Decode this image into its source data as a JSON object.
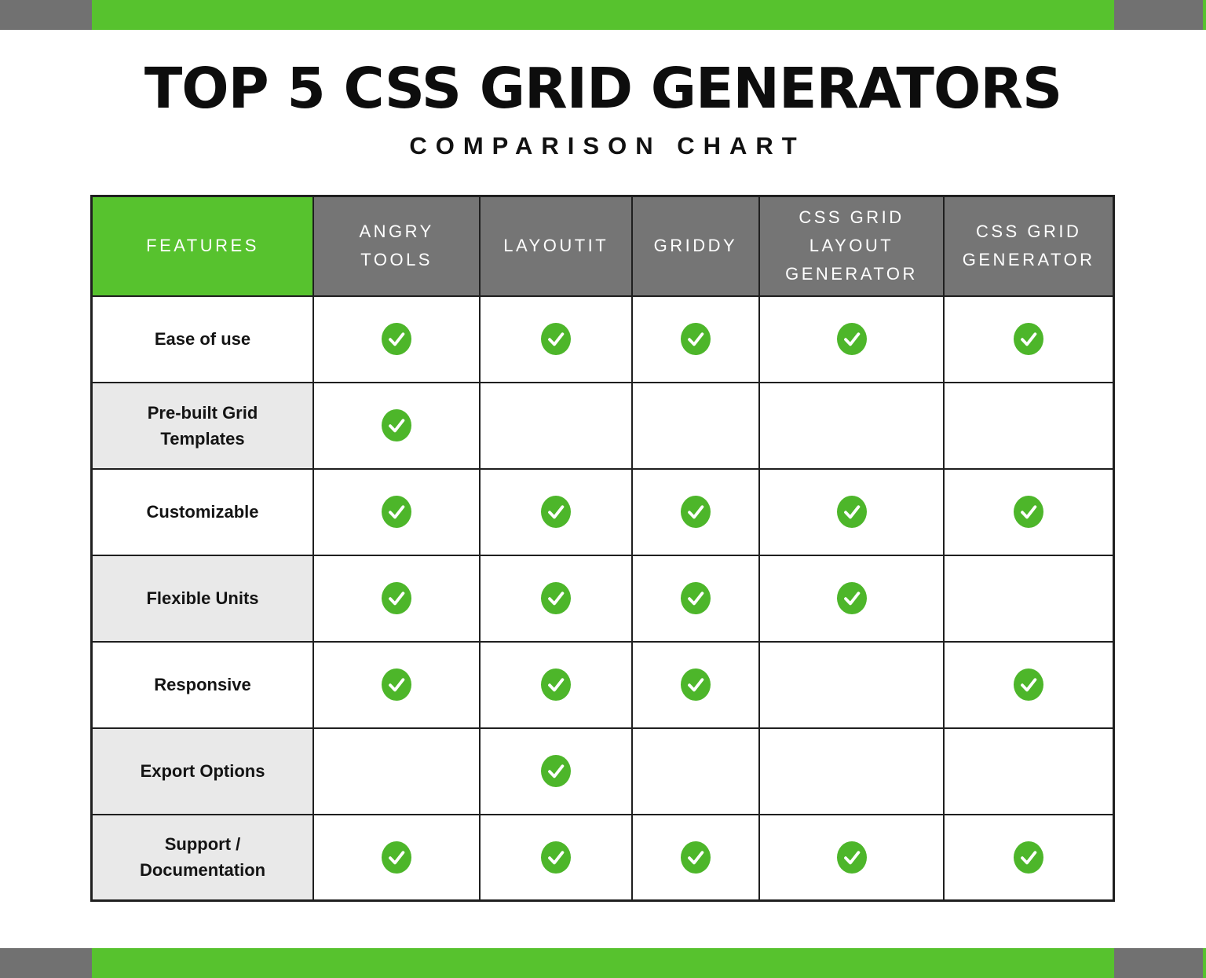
{
  "header": {
    "title": "TOP 5 CSS GRID GENERATORS",
    "subtitle": "COMPARISON CHART"
  },
  "colors": {
    "accent_green": "#57c22e",
    "check_green": "#4db62a",
    "header_gray": "#757575",
    "corner_gray": "#717171",
    "shaded_row_gray": "#e9e9e9",
    "border_black": "#1f1f1f",
    "check_mark_white": "#ffffff"
  },
  "icons": {
    "check": "check-circle-icon"
  },
  "table": {
    "feature_header": "FEATURES",
    "columns": [
      "ANGRY TOOLS",
      "LAYOUTIT",
      "GRIDDY",
      "CSS GRID LAYOUT GENERATOR",
      "CSS GRID GENERATOR"
    ],
    "rows": [
      {
        "feature": "Ease of use",
        "shaded": false,
        "checks": [
          true,
          true,
          true,
          true,
          true
        ]
      },
      {
        "feature": "Pre-built Grid Templates",
        "shaded": true,
        "checks": [
          true,
          false,
          false,
          false,
          false
        ]
      },
      {
        "feature": "Customizable",
        "shaded": false,
        "checks": [
          true,
          true,
          true,
          true,
          true
        ]
      },
      {
        "feature": "Flexible Units",
        "shaded": true,
        "checks": [
          true,
          true,
          true,
          true,
          false
        ]
      },
      {
        "feature": "Responsive",
        "shaded": false,
        "checks": [
          true,
          true,
          true,
          false,
          true
        ]
      },
      {
        "feature": "Export Options",
        "shaded": true,
        "checks": [
          false,
          true,
          false,
          false,
          false
        ]
      },
      {
        "feature": "Support / Documentation",
        "shaded": true,
        "checks": [
          true,
          true,
          true,
          true,
          true
        ]
      }
    ]
  },
  "chart_data": {
    "type": "table",
    "title": "TOP 5 CSS GRID GENERATORS",
    "subtitle": "COMPARISON CHART",
    "columns": [
      "FEATURES",
      "ANGRY TOOLS",
      "LAYOUTIT",
      "GRIDDY",
      "CSS GRID LAYOUT GENERATOR",
      "CSS GRID GENERATOR"
    ],
    "rows": [
      [
        "Ease of use",
        true,
        true,
        true,
        true,
        true
      ],
      [
        "Pre-built Grid Templates",
        true,
        false,
        false,
        false,
        false
      ],
      [
        "Customizable",
        true,
        true,
        true,
        true,
        true
      ],
      [
        "Flexible Units",
        true,
        true,
        true,
        true,
        false
      ],
      [
        "Responsive",
        true,
        true,
        true,
        false,
        true
      ],
      [
        "Export Options",
        false,
        true,
        false,
        false,
        false
      ],
      [
        "Support / Documentation",
        true,
        true,
        true,
        true,
        true
      ]
    ],
    "legend": "green check-circle = feature supported, empty cell = not supported",
    "legend_position": "none",
    "grid": true
  }
}
